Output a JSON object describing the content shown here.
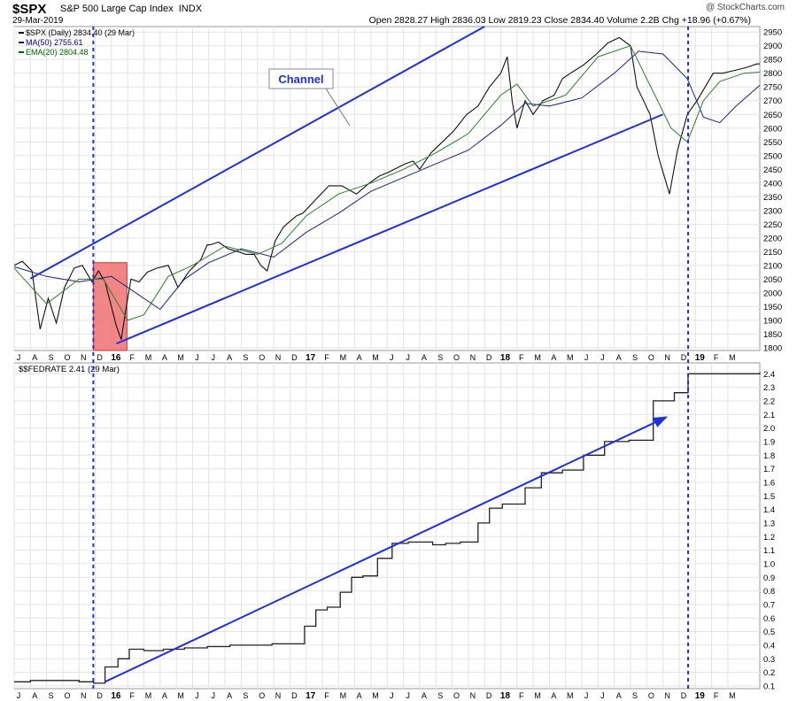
{
  "header": {
    "symbol": "$SPX",
    "name": "S&P 500 Large Cap Index",
    "exchange": "INDX",
    "date": "29-Mar-2019",
    "ohlc_line": "Open 2828.27   High 2836.03   Low 2819.23   Close 2834.40   Volume 2.2B   Chg +18.96 (+0.67%)",
    "credit": "@ StockCharts.com"
  },
  "chart_data": [
    {
      "type": "line",
      "title": "$SPX (Daily) 2834.40 (29 Mar)",
      "legend": [
        {
          "label": "$SPX (Daily) 2834.40 (29 Mar)",
          "color": "#000000"
        },
        {
          "label": "MA(50) 2755.61",
          "color": "#000080"
        },
        {
          "label": "EMA(20) 2804.48",
          "color": "#006400"
        }
      ],
      "ylim": [
        1790,
        2970
      ],
      "y_ticks": [
        1800,
        1850,
        1900,
        1950,
        2000,
        2050,
        2100,
        2150,
        2200,
        2250,
        2300,
        2350,
        2400,
        2450,
        2500,
        2550,
        2600,
        2650,
        2700,
        2750,
        2800,
        2850,
        2900,
        2950
      ],
      "x_range_months": [
        0,
        45.97
      ],
      "x_tick_labels": [
        "J",
        "A",
        "S",
        "O",
        "N",
        "D",
        "16",
        "F",
        "M",
        "A",
        "M",
        "J",
        "J",
        "A",
        "S",
        "O",
        "N",
        "D",
        "17",
        "F",
        "M",
        "A",
        "M",
        "J",
        "J",
        "A",
        "S",
        "O",
        "N",
        "D",
        "18",
        "F",
        "M",
        "A",
        "M",
        "J",
        "J",
        "A",
        "S",
        "O",
        "N",
        "D",
        "19",
        "F",
        "M"
      ],
      "series": [
        {
          "name": "$SPX",
          "x_months": [
            0,
            0.5,
            1.1,
            1.6,
            2.1,
            2.6,
            3.1,
            3.7,
            4.2,
            4.8,
            5.2,
            5.6,
            6.3,
            6.6,
            6.9,
            7.2,
            7.7,
            8.2,
            8.8,
            9.5,
            10.1,
            10.8,
            11.5,
            11.9,
            12.1,
            12.6,
            13.2,
            13.8,
            14.3,
            14.8,
            15.2,
            15.6,
            16.1,
            16.6,
            17.0,
            17.4,
            17.8,
            18.6,
            19.4,
            20.2,
            21.1,
            21.9,
            22.5,
            23.1,
            24.1,
            24.6,
            25.0,
            25.7,
            26.4,
            27.1,
            27.9,
            28.6,
            29.3,
            30.0,
            30.4,
            30.7,
            31.0,
            31.5,
            32.0,
            32.6,
            33.3,
            33.8,
            34.3,
            35.1,
            35.9,
            36.6,
            37.3,
            38.0,
            38.4,
            38.8,
            39.2,
            39.7,
            40.4,
            40.9,
            41.5,
            42.1,
            42.6,
            43.1,
            43.7,
            44.4,
            45.1,
            45.8,
            45.97
          ],
          "values": [
            2100,
            2115,
            2080,
            1868,
            1980,
            1890,
            2020,
            2090,
            2100,
            2040,
            2080,
            2040,
            1880,
            1830,
            1945,
            2050,
            2040,
            2075,
            2090,
            2100,
            2020,
            2080,
            2120,
            2175,
            2175,
            2185,
            2160,
            2150,
            2140,
            2140,
            2100,
            2080,
            2190,
            2240,
            2260,
            2280,
            2290,
            2340,
            2390,
            2390,
            2360,
            2400,
            2425,
            2440,
            2470,
            2480,
            2450,
            2510,
            2550,
            2590,
            2650,
            2680,
            2750,
            2800,
            2860,
            2700,
            2600,
            2700,
            2650,
            2700,
            2720,
            2780,
            2800,
            2830,
            2870,
            2910,
            2930,
            2900,
            2750,
            2700,
            2650,
            2500,
            2360,
            2520,
            2650,
            2700,
            2750,
            2800,
            2800,
            2810,
            2820,
            2834,
            2834
          ]
        },
        {
          "name": "MA(50)",
          "x_months": [
            0,
            2,
            4,
            6,
            7.5,
            9,
            10.5,
            12,
            14,
            16,
            18,
            20,
            22,
            24,
            26,
            28,
            30,
            31.5,
            33,
            35,
            37,
            38.5,
            40,
            41.5,
            42.5,
            43.5,
            44.5,
            45.97
          ],
          "values": [
            2095,
            2060,
            2040,
            2060,
            2000,
            1940,
            2050,
            2110,
            2160,
            2130,
            2220,
            2290,
            2370,
            2420,
            2470,
            2520,
            2610,
            2690,
            2680,
            2710,
            2800,
            2880,
            2870,
            2780,
            2640,
            2620,
            2680,
            2756
          ]
        },
        {
          "name": "EMA(20)",
          "x_months": [
            0,
            2,
            4,
            5.5,
            7,
            8,
            9.5,
            11,
            13,
            15,
            16.5,
            18,
            20,
            22,
            24,
            26,
            28,
            30,
            31,
            32,
            34,
            36,
            38,
            39.5,
            40.5,
            41.5,
            42.5,
            43.5,
            45,
            45.97
          ],
          "values": [
            2090,
            1960,
            2050,
            2050,
            1900,
            1920,
            2060,
            2100,
            2170,
            2140,
            2180,
            2280,
            2360,
            2400,
            2450,
            2510,
            2580,
            2720,
            2760,
            2680,
            2720,
            2860,
            2900,
            2720,
            2600,
            2550,
            2700,
            2770,
            2800,
            2804
          ]
        }
      ],
      "annotations": [
        {
          "text": "Channel",
          "type": "callout"
        },
        {
          "type": "trend_line",
          "label": "channel upper",
          "from": {
            "x_months": 1.0,
            "y": 2052
          },
          "to": {
            "x_months": 29.0,
            "y": 2970
          }
        },
        {
          "type": "trend_line",
          "label": "channel lower",
          "from": {
            "x_months": 6.3,
            "y": 1815
          },
          "to": {
            "x_months": 40.0,
            "y": 2650
          }
        },
        {
          "type": "shaded_region",
          "from_month": 4.88,
          "to_month": 6.95,
          "y_from": 1790,
          "y_to": 2110,
          "color": "#f07070"
        },
        {
          "type": "vertical_dashed",
          "x_month": 4.88
        },
        {
          "type": "vertical_dashed",
          "x_month": 41.55
        }
      ]
    },
    {
      "type": "line",
      "title": "$$FEDRATE 2.41 (29 Mar)",
      "ylim": [
        0.08,
        2.48
      ],
      "y_ticks": [
        0.1,
        0.2,
        0.3,
        0.4,
        0.5,
        0.6,
        0.7,
        0.8,
        0.9,
        1.0,
        1.1,
        1.2,
        1.3,
        1.4,
        1.5,
        1.6,
        1.7,
        1.8,
        1.9,
        2.0,
        2.1,
        2.2,
        2.3,
        2.4
      ],
      "x_tick_labels": [
        "J",
        "A",
        "S",
        "O",
        "N",
        "D",
        "16",
        "F",
        "M",
        "A",
        "M",
        "J",
        "J",
        "A",
        "S",
        "O",
        "N",
        "D",
        "17",
        "F",
        "M",
        "A",
        "M",
        "J",
        "J",
        "A",
        "S",
        "O",
        "N",
        "D",
        "18",
        "F",
        "M",
        "A",
        "M",
        "J",
        "J",
        "A",
        "S",
        "O",
        "N",
        "D",
        "19",
        "F",
        "M"
      ],
      "series": [
        {
          "name": "$$FEDRATE",
          "step": true,
          "x_months": [
            0,
            1,
            4,
            4.9,
            5.6,
            6.4,
            7.1,
            8.0,
            9.2,
            10.5,
            11.9,
            13.3,
            14.8,
            15.9,
            16.5,
            17.2,
            17.9,
            18.6,
            19.3,
            20.1,
            20.8,
            21.5,
            22.4,
            23.3,
            24.3,
            25.8,
            26.6,
            27.5,
            28.6,
            29.3,
            30.1,
            31.5,
            32.5,
            33.8,
            35.1,
            36.4,
            37.9,
            39.4,
            40.7,
            41.55,
            42.3,
            45.97
          ],
          "values": [
            0.13,
            0.14,
            0.13,
            0.12,
            0.24,
            0.3,
            0.37,
            0.36,
            0.37,
            0.38,
            0.39,
            0.4,
            0.4,
            0.41,
            0.41,
            0.41,
            0.54,
            0.66,
            0.68,
            0.79,
            0.9,
            0.91,
            1.04,
            1.15,
            1.16,
            1.14,
            1.15,
            1.16,
            1.3,
            1.41,
            1.44,
            1.56,
            1.67,
            1.69,
            1.8,
            1.9,
            1.91,
            2.2,
            2.26,
            2.4,
            2.4,
            2.41
          ]
        }
      ],
      "annotations": [
        {
          "type": "trend_arrow",
          "from": {
            "x_months": 5.6,
            "y": 0.13
          },
          "to": {
            "x_months": 40.2,
            "y": 2.08
          }
        },
        {
          "type": "vertical_dashed",
          "x_month": 4.88
        },
        {
          "type": "vertical_dashed",
          "x_month": 41.55
        }
      ]
    }
  ]
}
